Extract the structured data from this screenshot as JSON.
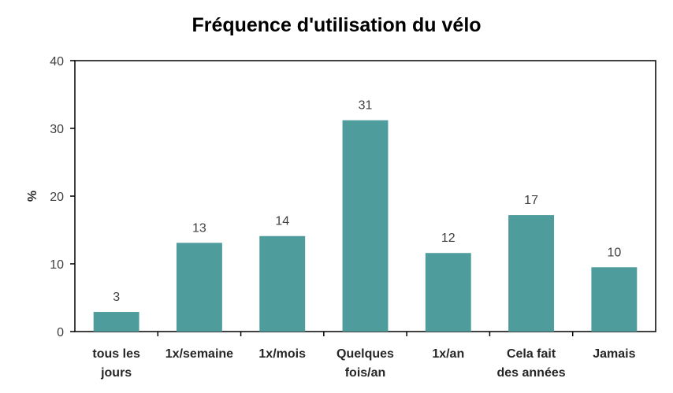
{
  "chart_data": {
    "type": "bar",
    "title": "Fréquence d'utilisation du vélo",
    "ylabel": "%",
    "xlabel": "",
    "ylim": [
      0,
      40
    ],
    "yticks": [
      "0",
      "10",
      "20",
      "30",
      "40"
    ],
    "categories": [
      [
        "tous les",
        "jours"
      ],
      [
        "1x/semaine"
      ],
      [
        "1x/mois"
      ],
      [
        "Quelques",
        "fois/an"
      ],
      [
        "1x/an"
      ],
      [
        "Cela fait",
        "des années"
      ],
      [
        "Jamais"
      ]
    ],
    "values": [
      2.9,
      13.1,
      14.1,
      31.2,
      11.6,
      17.2,
      9.5
    ],
    "data_labels": [
      "3",
      "13",
      "14",
      "31",
      "12",
      "17",
      "10"
    ],
    "bar_color": "#4e9c9c",
    "grid": false,
    "legend": "none"
  }
}
